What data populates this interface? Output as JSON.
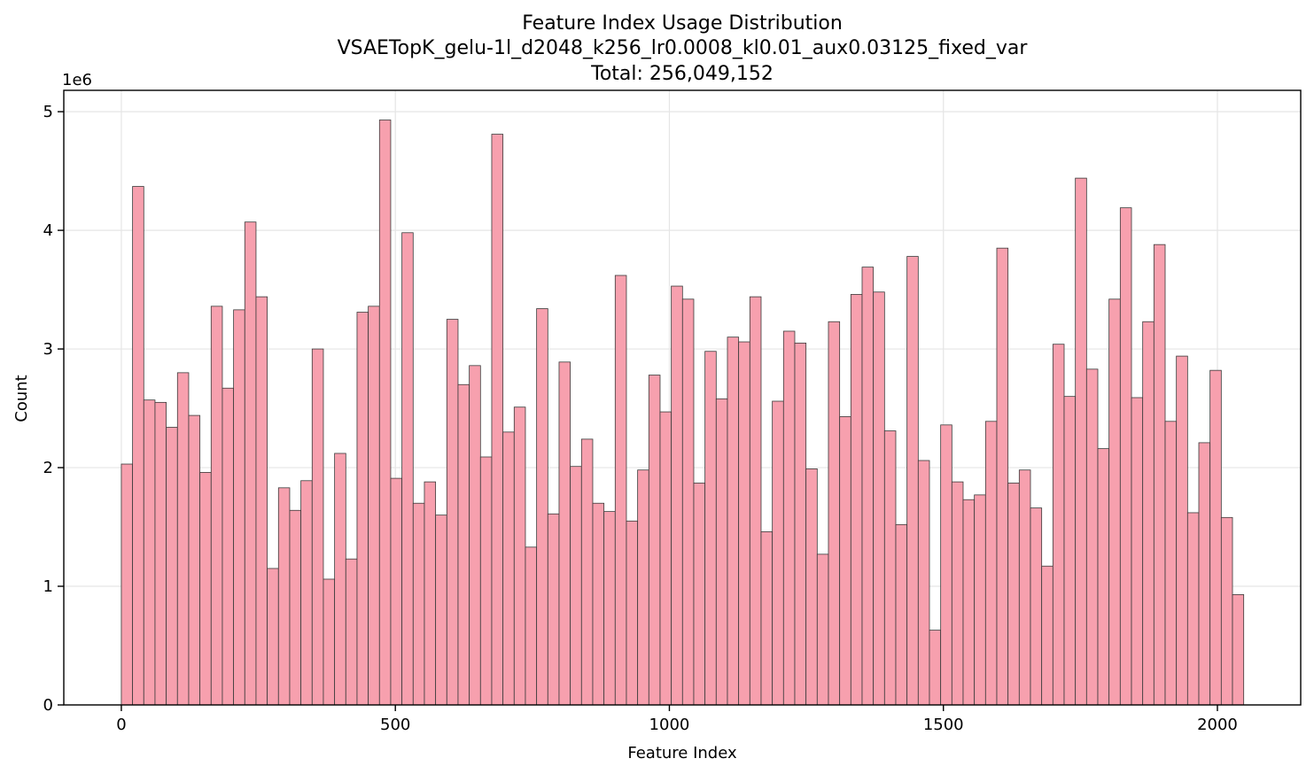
{
  "chart_data": {
    "type": "bar",
    "title": [
      "Feature Index Usage Distribution",
      "VSAETopK_gelu-1l_d2048_k256_lr0.0008_kl0.01_aux0.03125_fixed_var",
      "Total: 256,049,152"
    ],
    "xlabel": "Feature Index",
    "ylabel": "Count",
    "y_offset_label": "1e6",
    "y_scale": 1000000,
    "xlim": [
      -105,
      2152
    ],
    "ylim": [
      0,
      5.18
    ],
    "xticks": [
      0,
      500,
      1000,
      1500,
      2000
    ],
    "yticks": [
      0,
      1,
      2,
      3,
      4,
      5
    ],
    "grid": true,
    "bin_start": 0,
    "bin_width": 20.48,
    "bar_color": "#f7a0ae",
    "edge_color": "#3a3a3a",
    "values": [
      2.03,
      4.37,
      2.57,
      2.55,
      2.34,
      2.8,
      2.44,
      1.96,
      3.36,
      2.67,
      3.33,
      4.07,
      3.44,
      1.15,
      1.83,
      1.64,
      1.89,
      3.0,
      1.06,
      2.12,
      1.23,
      3.31,
      3.36,
      4.93,
      1.91,
      3.98,
      1.7,
      1.88,
      1.6,
      3.25,
      2.7,
      2.86,
      2.09,
      4.81,
      2.3,
      2.51,
      1.33,
      3.34,
      1.61,
      2.89,
      2.01,
      2.24,
      1.7,
      1.63,
      3.62,
      1.55,
      1.98,
      2.78,
      2.47,
      3.53,
      3.42,
      1.87,
      2.98,
      2.58,
      3.1,
      3.06,
      3.44,
      1.46,
      2.56,
      3.15,
      3.05,
      1.99,
      1.27,
      3.23,
      2.43,
      3.46,
      3.69,
      3.48,
      2.31,
      1.52,
      3.78,
      2.06,
      0.63,
      2.36,
      1.88,
      1.73,
      1.77,
      2.39,
      3.85,
      1.87,
      1.98,
      1.66,
      1.17,
      3.04,
      2.6,
      4.44,
      2.83,
      2.16,
      3.42,
      4.19,
      2.59,
      3.23,
      3.88,
      2.39,
      2.94,
      1.62,
      2.21,
      2.82,
      1.58,
      0.93
    ]
  }
}
